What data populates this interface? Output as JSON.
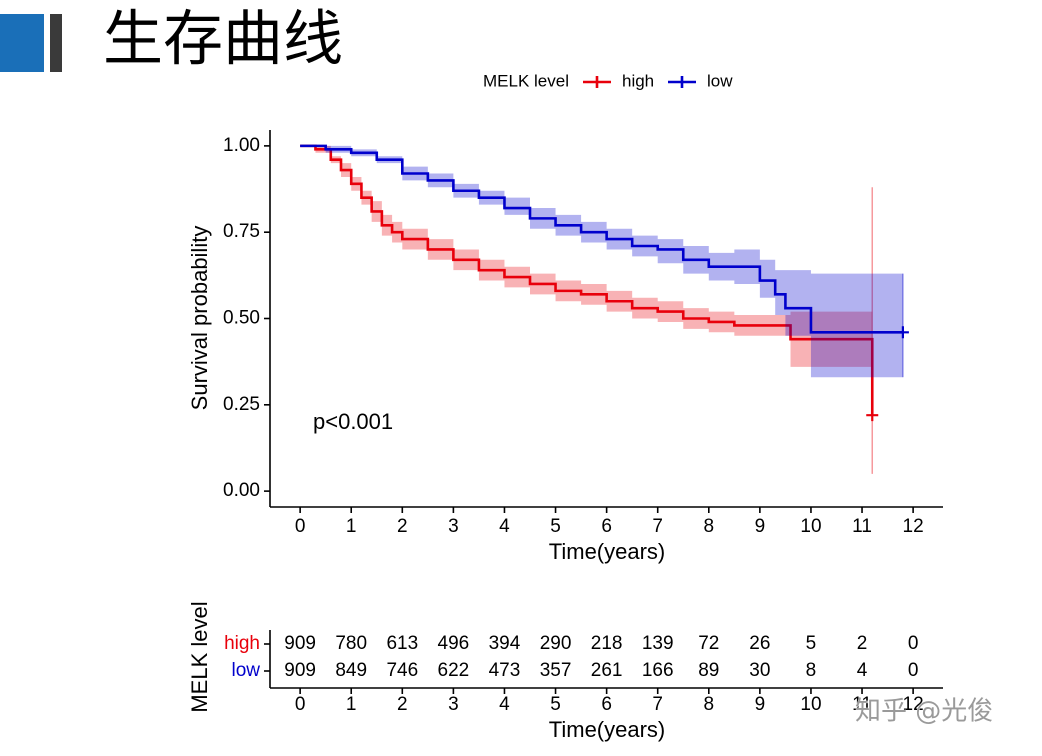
{
  "slide": {
    "title": "生存曲线",
    "watermark": "知乎 @光俊"
  },
  "chart_data": [
    {
      "type": "step",
      "legend_title": "MELK level",
      "xlabel": "Time(years)",
      "ylabel": "Survival probability",
      "annotation": "p<0.001",
      "xlim": [
        -0.59,
        12.585
      ],
      "ylim": [
        -0.046,
        1.046
      ],
      "xticks": [
        0,
        1,
        2,
        3,
        4,
        5,
        6,
        7,
        8,
        9,
        10,
        11,
        12
      ],
      "yticks": [
        {
          "value": 0,
          "label": "0.00"
        },
        0.25,
        {
          "value": 0.5,
          "label": "0.50"
        },
        0.75,
        {
          "value": 1,
          "label": "1.00"
        }
      ],
      "series": [
        {
          "name": "high",
          "color": "#e8000b",
          "x": [
            0,
            0.3,
            0.6,
            0.8,
            1.0,
            1.2,
            1.4,
            1.6,
            1.8,
            2.0,
            2.5,
            3.0,
            3.5,
            4.0,
            4.5,
            5.0,
            5.5,
            6.0,
            6.5,
            7.0,
            7.5,
            8.0,
            8.5,
            9.6,
            11.2
          ],
          "values": [
            1,
            0.99,
            0.96,
            0.93,
            0.89,
            0.85,
            0.81,
            0.77,
            0.75,
            0.73,
            0.7,
            0.67,
            0.64,
            0.62,
            0.6,
            0.58,
            0.57,
            0.55,
            0.53,
            0.52,
            0.5,
            0.49,
            0.48,
            0.44,
            0.22
          ],
          "lower": [
            1,
            0.98,
            0.95,
            0.91,
            0.87,
            0.83,
            0.78,
            0.74,
            0.72,
            0.7,
            0.67,
            0.64,
            0.61,
            0.59,
            0.57,
            0.55,
            0.54,
            0.52,
            0.5,
            0.49,
            0.47,
            0.46,
            0.45,
            0.36,
            0.05
          ],
          "upper": [
            1,
            1.0,
            0.97,
            0.95,
            0.91,
            0.87,
            0.84,
            0.8,
            0.78,
            0.76,
            0.73,
            0.7,
            0.67,
            0.65,
            0.63,
            0.61,
            0.6,
            0.58,
            0.56,
            0.55,
            0.53,
            0.52,
            0.51,
            0.52,
            0.88
          ]
        },
        {
          "name": "low",
          "color": "#0000cc",
          "x": [
            0,
            0.5,
            1.0,
            1.5,
            2.0,
            2.5,
            3.0,
            3.5,
            4.0,
            4.5,
            5.0,
            5.5,
            6.0,
            6.5,
            7.0,
            7.5,
            8.0,
            8.5,
            9.0,
            9.3,
            9.5,
            10.0,
            11.8
          ],
          "values": [
            1,
            0.99,
            0.98,
            0.96,
            0.92,
            0.9,
            0.87,
            0.85,
            0.82,
            0.79,
            0.77,
            0.75,
            0.73,
            0.71,
            0.7,
            0.67,
            0.65,
            0.65,
            0.61,
            0.57,
            0.53,
            0.46,
            0.46
          ],
          "lower": [
            1,
            0.98,
            0.97,
            0.95,
            0.9,
            0.88,
            0.85,
            0.83,
            0.8,
            0.76,
            0.74,
            0.72,
            0.7,
            0.68,
            0.66,
            0.63,
            0.61,
            0.6,
            0.56,
            0.51,
            0.45,
            0.33,
            0.33
          ],
          "upper": [
            1,
            1.0,
            0.99,
            0.97,
            0.94,
            0.92,
            0.89,
            0.87,
            0.85,
            0.82,
            0.8,
            0.78,
            0.76,
            0.74,
            0.73,
            0.71,
            0.69,
            0.7,
            0.67,
            0.64,
            0.64,
            0.63,
            0.63
          ]
        }
      ]
    },
    {
      "type": "risk_table",
      "xlabel": "Time(years)",
      "ylabel": "MELK level",
      "xlim": [
        -0.59,
        12.585
      ],
      "xticks": [
        0,
        1,
        2,
        3,
        4,
        5,
        6,
        7,
        8,
        9,
        10,
        11,
        12
      ],
      "series": [
        {
          "name": "high",
          "color": "#e8000b",
          "values": [
            909,
            780,
            613,
            496,
            394,
            290,
            218,
            139,
            72,
            26,
            5,
            2,
            0
          ]
        },
        {
          "name": "low",
          "color": "#0000cc",
          "values": [
            909,
            849,
            746,
            622,
            473,
            357,
            261,
            166,
            89,
            30,
            8,
            4,
            0
          ]
        }
      ]
    }
  ]
}
